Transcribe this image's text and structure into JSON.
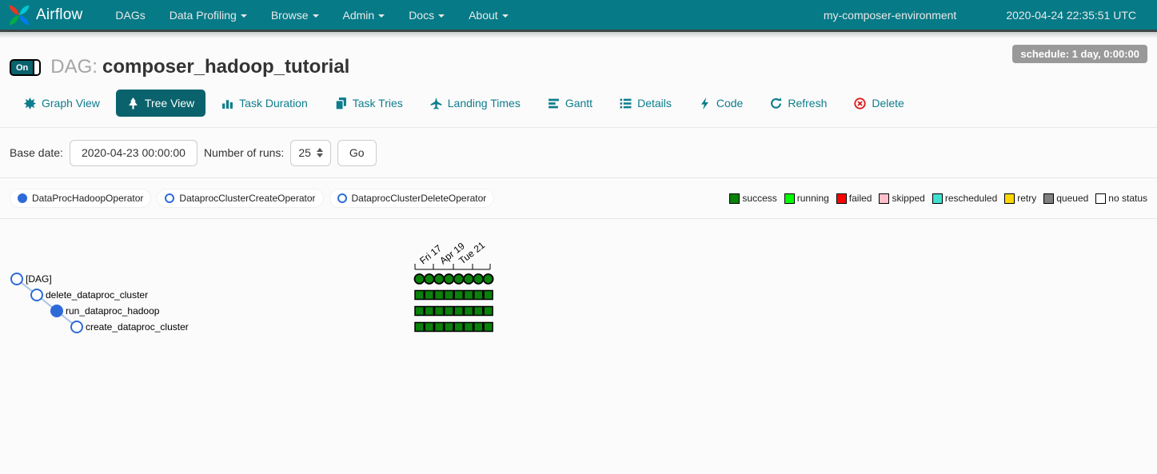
{
  "navbar": {
    "brand": "Airflow",
    "items": [
      {
        "label": "DAGs",
        "dropdown": false
      },
      {
        "label": "Data Profiling",
        "dropdown": true
      },
      {
        "label": "Browse",
        "dropdown": true
      },
      {
        "label": "Admin",
        "dropdown": true
      },
      {
        "label": "Docs",
        "dropdown": true
      },
      {
        "label": "About",
        "dropdown": true
      }
    ],
    "environment": "my-composer-environment",
    "clock": "2020-04-24 22:35:51 UTC"
  },
  "header": {
    "toggle_label": "On",
    "dag_prefix": "DAG:",
    "dag_title": "composer_hadoop_tutorial",
    "schedule_badge": "schedule: 1 day, 0:00:00"
  },
  "tabs": [
    {
      "label": "Graph View",
      "icon": "graph-view-icon",
      "active": false
    },
    {
      "label": "Tree View",
      "icon": "tree-view-icon",
      "active": true
    },
    {
      "label": "Task Duration",
      "icon": "task-duration-icon",
      "active": false
    },
    {
      "label": "Task Tries",
      "icon": "task-tries-icon",
      "active": false
    },
    {
      "label": "Landing Times",
      "icon": "landing-times-icon",
      "active": false
    },
    {
      "label": "Gantt",
      "icon": "gantt-icon",
      "active": false
    },
    {
      "label": "Details",
      "icon": "details-icon",
      "active": false
    },
    {
      "label": "Code",
      "icon": "code-icon",
      "active": false
    },
    {
      "label": "Refresh",
      "icon": "refresh-icon",
      "active": false
    },
    {
      "label": "Delete",
      "icon": "delete-icon",
      "active": false,
      "danger": true
    }
  ],
  "filter": {
    "base_date_label": "Base date:",
    "base_date_value": "2020-04-23 00:00:00",
    "num_runs_label": "Number of runs:",
    "num_runs_value": "25",
    "go_label": "Go"
  },
  "operator_legend": [
    {
      "label": "DataProcHadoopOperator",
      "filled": true
    },
    {
      "label": "DataprocClusterCreateOperator",
      "filled": false
    },
    {
      "label": "DataprocClusterDeleteOperator",
      "filled": false
    }
  ],
  "status_legend": [
    {
      "label": "success",
      "color": "#0b800b"
    },
    {
      "label": "running",
      "color": "#00ff00"
    },
    {
      "label": "failed",
      "color": "#ff0000"
    },
    {
      "label": "skipped",
      "color": "#ffc0cb"
    },
    {
      "label": "rescheduled",
      "color": "#40e0d0"
    },
    {
      "label": "retry",
      "color": "#ffd700"
    },
    {
      "label": "queued",
      "color": "#808080"
    },
    {
      "label": "no status",
      "color": "#ffffff"
    }
  ],
  "chart_data": {
    "type": "tree-grid",
    "title": "DAG runs tree view",
    "axis_tick_labels": [
      "Fri 17",
      "Apr 19",
      "Tue 21"
    ],
    "num_runs_shown": 8,
    "status_colors": {
      "success": "#0b800b"
    },
    "node_color": "#2e6bd8",
    "edge_color": "#a8c4e6",
    "rows": [
      {
        "name": "[DAG]",
        "node": "outline",
        "cell_shape": "circle",
        "statuses": [
          "success",
          "success",
          "success",
          "success",
          "success",
          "success",
          "success",
          "success"
        ]
      },
      {
        "name": "delete_dataproc_cluster",
        "node": "outline",
        "cell_shape": "square",
        "statuses": [
          "success",
          "success",
          "success",
          "success",
          "success",
          "success",
          "success",
          "success"
        ]
      },
      {
        "name": "run_dataproc_hadoop",
        "node": "filled",
        "cell_shape": "square",
        "statuses": [
          "success",
          "success",
          "success",
          "success",
          "success",
          "success",
          "success",
          "success"
        ]
      },
      {
        "name": "create_dataproc_cluster",
        "node": "outline",
        "cell_shape": "square",
        "statuses": [
          "success",
          "success",
          "success",
          "success",
          "success",
          "success",
          "success",
          "success"
        ]
      }
    ]
  }
}
